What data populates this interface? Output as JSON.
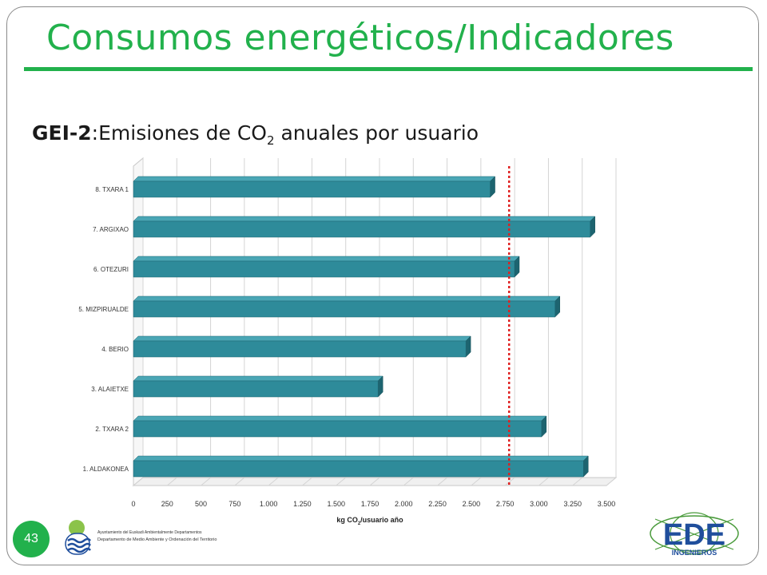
{
  "slide": {
    "title": "Consumos energéticos/Indicadores",
    "subtitle_bold": "GEI-2",
    "subtitle_rest_a": ":Emisiones de CO",
    "subtitle_sub": "2",
    "subtitle_rest_b": " anuales por usuario",
    "page_number": "43"
  },
  "footer": {
    "gov_line1": "Ayuntamiento del Euskadi Ambientalmente Departamentos",
    "gov_line2": "Departamento de Medio Ambiente y Ordenación del Territorio",
    "ede_text": "EDE",
    "ede_sub": "INGENIEROS"
  },
  "colors": {
    "accent": "#22b14c",
    "bar_front": "#2e8b9a",
    "bar_top": "#4aa6b5",
    "bar_side": "#1d6470",
    "reference_line": "#e02020"
  },
  "chart_data": {
    "type": "bar",
    "orientation": "horizontal",
    "categories": [
      "8. TXARA 1",
      "7. ARGIXAO",
      "6. OTEZURI",
      "5. MIZPIRUALDE",
      "4. BERIO",
      "3. ALAIETXE",
      "2. TXARA 2",
      "1. ALDAKONEA"
    ],
    "values": [
      2640,
      3380,
      2820,
      3120,
      2460,
      1810,
      3020,
      3330
    ],
    "reference_line": 2780,
    "xlabel_pre": "kg CO",
    "xlabel_sub": "2",
    "xlabel_post": "/usuario año",
    "xlim": [
      0,
      3500
    ],
    "xticks": [
      "0",
      "250",
      "500",
      "750",
      "1.000",
      "1.250",
      "1.500",
      "1.750",
      "2.000",
      "2.250",
      "2.500",
      "2.750",
      "3.000",
      "3.250",
      "3.500"
    ],
    "grid": true
  }
}
